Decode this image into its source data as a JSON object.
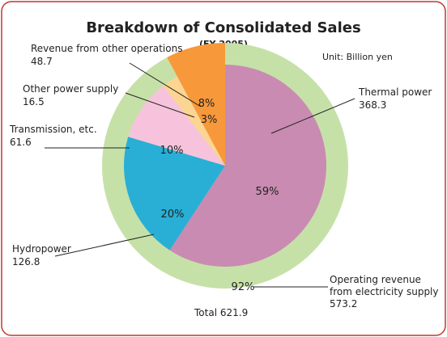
{
  "chart_data": {
    "type": "pie",
    "title": "Breakdown of Consolidated Sales",
    "subtitle": "(FY 2005)",
    "unit": "Unit: Billion yen",
    "total_label": "Total",
    "total": 621.9,
    "categories": [
      "Thermal power",
      "Hydropower",
      "Transmission, etc.",
      "Other power supply",
      "Revenue from other operations"
    ],
    "values": [
      368.3,
      126.8,
      61.6,
      16.5,
      48.7
    ],
    "percents": [
      59,
      20,
      10,
      3,
      8
    ],
    "percent_labels": [
      "59%",
      "20%",
      "10%",
      "3%",
      "8%"
    ],
    "colors": [
      "#c98bb1",
      "#29afd6",
      "#f7c3dc",
      "#fcd592",
      "#f7993a"
    ],
    "ring": {
      "name": "Operating revenue from electricity supply",
      "value": 573.2,
      "percent": 92,
      "percent_label": "92%",
      "color": "#c6e1a8"
    }
  }
}
